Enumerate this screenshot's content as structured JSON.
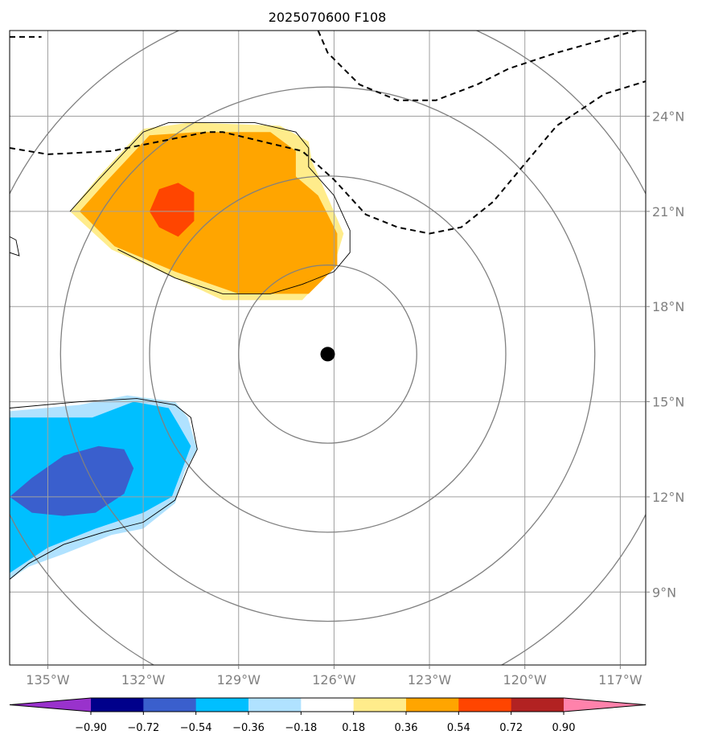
{
  "title": "2025070600 F108",
  "chart_data": {
    "type": "map",
    "title": "2025070600 F108",
    "lon_range": [
      -136.2,
      -116.2
    ],
    "lat_range": [
      6.7,
      26.7
    ],
    "x_ticks": [
      {
        "value": -135,
        "label": "135°W"
      },
      {
        "value": -132,
        "label": "132°W"
      },
      {
        "value": -129,
        "label": "129°W"
      },
      {
        "value": -126,
        "label": "126°W"
      },
      {
        "value": -123,
        "label": "123°W"
      },
      {
        "value": -120,
        "label": "120°W"
      },
      {
        "value": -117,
        "label": "117°W"
      }
    ],
    "y_ticks": [
      {
        "value": 24,
        "label": "24°N"
      },
      {
        "value": 21,
        "label": "21°N"
      },
      {
        "value": 18,
        "label": "18°N"
      },
      {
        "value": 15,
        "label": "15°N"
      },
      {
        "value": 12,
        "label": "12°N"
      },
      {
        "value": 9,
        "label": "9°N"
      }
    ],
    "grid": true,
    "center": {
      "lon": -126.2,
      "lat": 16.5
    },
    "range_rings_deg": [
      2.8,
      5.6,
      8.4,
      11.2
    ],
    "colorbar": {
      "tick_labels": [
        "−0.90",
        "−0.72",
        "−0.54",
        "−0.36",
        "−0.18",
        "0.18",
        "0.36",
        "0.54",
        "0.72",
        "0.90"
      ],
      "colors": [
        "#9932cc",
        "#00008b",
        "#3a5fcd",
        "#00bfff",
        "#b0e2ff",
        "#ffffff",
        "#ffec8b",
        "#ffa500",
        "#ff4500",
        "#b22222",
        "#ff82ab"
      ],
      "extend": "both"
    },
    "filled_regions": [
      {
        "class": "0.18 to 0.36",
        "color": "#ffec8b",
        "points": [
          [
            -134.3,
            21.0
          ],
          [
            -133.4,
            22.1
          ],
          [
            -132.0,
            23.6
          ],
          [
            -130.5,
            23.8
          ],
          [
            -127.7,
            23.7
          ],
          [
            -126.8,
            23.2
          ],
          [
            -126.7,
            22.6
          ],
          [
            -125.7,
            20.3
          ],
          [
            -126.0,
            19.3
          ],
          [
            -127.0,
            18.2
          ],
          [
            -129.5,
            18.2
          ],
          [
            -131.0,
            18.9
          ],
          [
            -133.0,
            19.8
          ]
        ]
      },
      {
        "class": "0.36 to 0.54",
        "color": "#ffa500",
        "points": [
          [
            -134.0,
            21.0
          ],
          [
            -133.2,
            21.9
          ],
          [
            -131.8,
            23.4
          ],
          [
            -130.3,
            23.5
          ],
          [
            -128.0,
            23.5
          ],
          [
            -127.2,
            22.9
          ],
          [
            -127.2,
            22.1
          ],
          [
            -126.5,
            21.5
          ],
          [
            -125.9,
            20.3
          ],
          [
            -125.9,
            19.3
          ],
          [
            -126.8,
            18.4
          ],
          [
            -129.0,
            18.4
          ],
          [
            -131.0,
            19.1
          ],
          [
            -132.9,
            19.9
          ]
        ]
      },
      {
        "class": "0.54 to 0.72",
        "color": "#ff4500",
        "points": [
          [
            -131.8,
            21.0
          ],
          [
            -131.5,
            21.7
          ],
          [
            -130.9,
            21.9
          ],
          [
            -130.4,
            21.6
          ],
          [
            -130.4,
            20.7
          ],
          [
            -130.9,
            20.2
          ],
          [
            -131.5,
            20.5
          ]
        ]
      },
      {
        "class": "-0.36 to -0.18",
        "color": "#b0e2ff",
        "points": [
          [
            -136.2,
            14.7
          ],
          [
            -134.0,
            14.9
          ],
          [
            -132.5,
            15.2
          ],
          [
            -131.0,
            15.0
          ],
          [
            -130.6,
            14.5
          ],
          [
            -130.3,
            13.5
          ],
          [
            -130.7,
            12.8
          ],
          [
            -131.0,
            11.8
          ],
          [
            -132.0,
            11.0
          ],
          [
            -133.0,
            10.8
          ],
          [
            -134.5,
            10.2
          ],
          [
            -135.6,
            9.8
          ],
          [
            -136.2,
            9.4
          ]
        ]
      },
      {
        "class": "-0.54 to -0.36",
        "color": "#00bfff",
        "points": [
          [
            -136.2,
            14.5
          ],
          [
            -134.5,
            14.5
          ],
          [
            -133.6,
            14.5
          ],
          [
            -132.3,
            15.0
          ],
          [
            -131.2,
            14.8
          ],
          [
            -130.9,
            14.3
          ],
          [
            -130.5,
            13.6
          ],
          [
            -130.8,
            12.8
          ],
          [
            -131.1,
            12.0
          ],
          [
            -132.0,
            11.5
          ],
          [
            -133.5,
            11.0
          ],
          [
            -135.0,
            10.4
          ],
          [
            -136.2,
            9.6
          ]
        ]
      },
      {
        "class": "-0.72 to -0.54",
        "color": "#3a5fcd",
        "points": [
          [
            -136.2,
            12.0
          ],
          [
            -135.5,
            12.6
          ],
          [
            -134.5,
            13.3
          ],
          [
            -133.4,
            13.6
          ],
          [
            -132.6,
            13.5
          ],
          [
            -132.3,
            12.9
          ],
          [
            -132.6,
            12.1
          ],
          [
            -133.5,
            11.5
          ],
          [
            -134.5,
            11.4
          ],
          [
            -135.5,
            11.5
          ]
        ]
      }
    ],
    "solid_contours": [
      [
        [
          -134.3,
          21.0
        ],
        [
          -133.4,
          22.0
        ],
        [
          -132.0,
          23.5
        ],
        [
          -131.2,
          23.8
        ],
        [
          -128.5,
          23.8
        ],
        [
          -127.2,
          23.5
        ],
        [
          -126.8,
          23.0
        ],
        [
          -126.8,
          22.4
        ],
        [
          -126.0,
          21.5
        ],
        [
          -125.5,
          20.4
        ],
        [
          -125.5,
          19.7
        ],
        [
          -126.0,
          19.1
        ],
        [
          -127.0,
          18.7
        ],
        [
          -128.0,
          18.4
        ],
        [
          -129.5,
          18.4
        ],
        [
          -131.0,
          18.9
        ],
        [
          -132.8,
          19.8
        ]
      ],
      [
        [
          -136.2,
          14.8
        ],
        [
          -134.0,
          15.0
        ],
        [
          -132.2,
          15.1
        ],
        [
          -131.0,
          14.9
        ],
        [
          -130.5,
          14.5
        ],
        [
          -130.3,
          13.5
        ],
        [
          -130.6,
          12.9
        ],
        [
          -131.0,
          11.9
        ],
        [
          -132.0,
          11.2
        ],
        [
          -133.2,
          10.9
        ],
        [
          -134.5,
          10.5
        ],
        [
          -135.6,
          9.9
        ],
        [
          -136.2,
          9.4
        ]
      ],
      [
        [
          -136.2,
          20.2
        ],
        [
          -136.0,
          20.1
        ],
        [
          -135.9,
          19.6
        ],
        [
          -136.2,
          19.7
        ]
      ]
    ],
    "dashed_contours": [
      [
        [
          -136.2,
          26.5
        ],
        [
          -135.8,
          26.5
        ],
        [
          -135.2,
          26.5
        ]
      ],
      [
        [
          -136.2,
          23.0
        ],
        [
          -135.0,
          22.8
        ],
        [
          -133.0,
          22.9
        ],
        [
          -131.5,
          23.2
        ],
        [
          -130.0,
          23.5
        ],
        [
          -129.5,
          23.5
        ],
        [
          -127.0,
          22.9
        ],
        [
          -126.0,
          22.0
        ],
        [
          -125.0,
          20.9
        ],
        [
          -124.0,
          20.5
        ],
        [
          -123.0,
          20.3
        ],
        [
          -122.0,
          20.5
        ],
        [
          -121.0,
          21.3
        ],
        [
          -120.0,
          22.5
        ],
        [
          -119.0,
          23.7
        ],
        [
          -117.5,
          24.7
        ],
        [
          -116.2,
          25.1
        ]
      ],
      [
        [
          -126.5,
          26.7
        ],
        [
          -126.2,
          26.0
        ],
        [
          -125.2,
          25.0
        ],
        [
          -124.0,
          24.5
        ],
        [
          -122.8,
          24.5
        ],
        [
          -121.5,
          25.0
        ],
        [
          -120.5,
          25.5
        ],
        [
          -119.0,
          26.0
        ],
        [
          -116.5,
          26.7
        ]
      ]
    ]
  }
}
